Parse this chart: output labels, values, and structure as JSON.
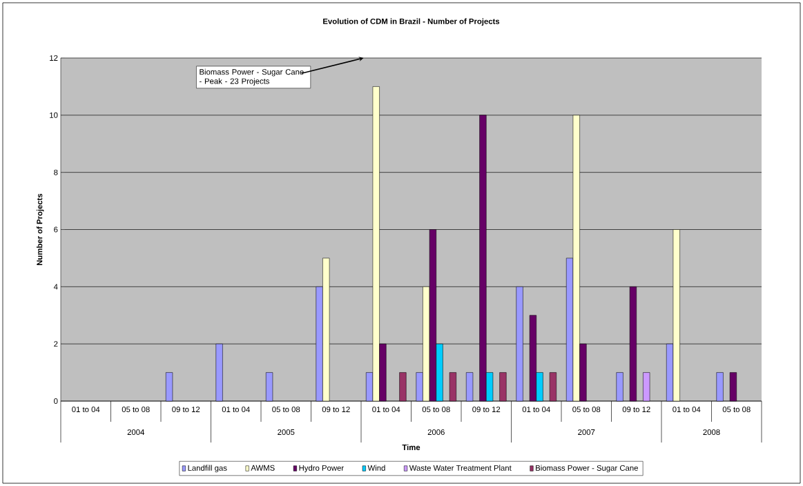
{
  "chart_data": {
    "type": "bar",
    "title": "Evolution of CDM in Brazil - Number of Projects",
    "xlabel": "Time",
    "ylabel": "Number of Projects",
    "categories": [
      "01 to 04",
      "05 to 08",
      "09 to 12",
      "01 to 04",
      "05 to 08",
      "09 to 12",
      "01 to 04",
      "05 to 08",
      "09 to 12",
      "01 to 04",
      "05 to 08",
      "09 to 12",
      "01 to 04",
      "05 to 08"
    ],
    "series": [
      {
        "name": "Landfill gas",
        "color": "#9999ff",
        "values": [
          null,
          null,
          1,
          2,
          1,
          4,
          1,
          1,
          1,
          4,
          5,
          1,
          2,
          1
        ]
      },
      {
        "name": "AWMS",
        "color": "#ffffcc",
        "values": [
          null,
          null,
          null,
          null,
          null,
          5,
          11,
          4,
          null,
          null,
          10,
          null,
          6,
          null
        ]
      },
      {
        "name": "Hydro Power",
        "color": "#660066",
        "values": [
          null,
          null,
          null,
          null,
          null,
          null,
          2,
          6,
          10,
          3,
          2,
          4,
          null,
          1
        ]
      },
      {
        "name": "Wind",
        "color": "#00ccff",
        "values": [
          null,
          null,
          null,
          null,
          null,
          null,
          null,
          2,
          1,
          1,
          null,
          null,
          null,
          null
        ]
      },
      {
        "name": "Waste Water Treatment Plant",
        "color": "#cc99ff",
        "values": [
          null,
          null,
          null,
          null,
          null,
          null,
          null,
          null,
          null,
          null,
          null,
          1,
          null,
          null
        ]
      },
      {
        "name": "Biomass Power - Sugar Cane",
        "color": "#993366",
        "values": [
          null,
          null,
          null,
          null,
          null,
          null,
          1,
          1,
          1,
          1,
          null,
          null,
          null,
          null
        ]
      }
    ],
    "annotations": [
      "Biomass Power - Sugar Cane - Peak - 23 Projects",
      "2004",
      "2005",
      "2006",
      "2007",
      "2008"
    ],
    "ylim": [
      0,
      12
    ],
    "yticks": [
      0,
      2,
      4,
      6,
      8,
      10,
      12
    ],
    "grid": "y",
    "legend": "bottom"
  }
}
